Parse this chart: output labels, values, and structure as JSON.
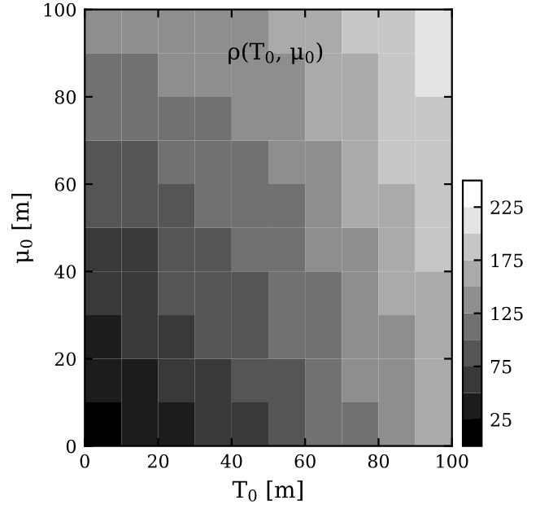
{
  "chart_data": {
    "type": "heatmap",
    "xlabel": "T$_{0}$ [m]",
    "ylabel": "μ$_{0}$ [m]",
    "annotations": [
      "ρ(T$_{0}$, μ$_{0}$)"
    ],
    "x": [
      5,
      15,
      25,
      35,
      45,
      55,
      65,
      75,
      85,
      95
    ],
    "y": [
      95,
      85,
      75,
      65,
      55,
      45,
      35,
      25,
      15,
      5
    ],
    "cells": [
      [
        128,
        131,
        137,
        142,
        143,
        151,
        165,
        180,
        196,
        211
      ],
      [
        116,
        119,
        127,
        133,
        136,
        144,
        158,
        173,
        189,
        204
      ],
      [
        103,
        108,
        117,
        124,
        128,
        137,
        151,
        167,
        182,
        197
      ],
      [
        90,
        97,
        106,
        114,
        120,
        130,
        144,
        160,
        175,
        191
      ],
      [
        78,
        85,
        96,
        105,
        112,
        123,
        138,
        153,
        168,
        184
      ],
      [
        65,
        74,
        85,
        96,
        104,
        116,
        131,
        146,
        162,
        177
      ],
      [
        52,
        63,
        75,
        87,
        97,
        109,
        124,
        139,
        155,
        170
      ],
      [
        40,
        51,
        65,
        77,
        89,
        102,
        117,
        133,
        148,
        163
      ],
      [
        27,
        40,
        54,
        68,
        81,
        95,
        110,
        126,
        141,
        157
      ],
      [
        14,
        29,
        44,
        59,
        73,
        88,
        103,
        119,
        134,
        150
      ]
    ],
    "xlim": [
      0,
      100
    ],
    "ylim": [
      0,
      100
    ],
    "xticks": [
      0,
      20,
      40,
      60,
      80,
      100
    ],
    "yticks": [
      0,
      20,
      40,
      60,
      80,
      100
    ],
    "clim": [
      0,
      250
    ],
    "cticks": [
      25,
      75,
      125,
      175,
      225
    ],
    "grid": false
  }
}
